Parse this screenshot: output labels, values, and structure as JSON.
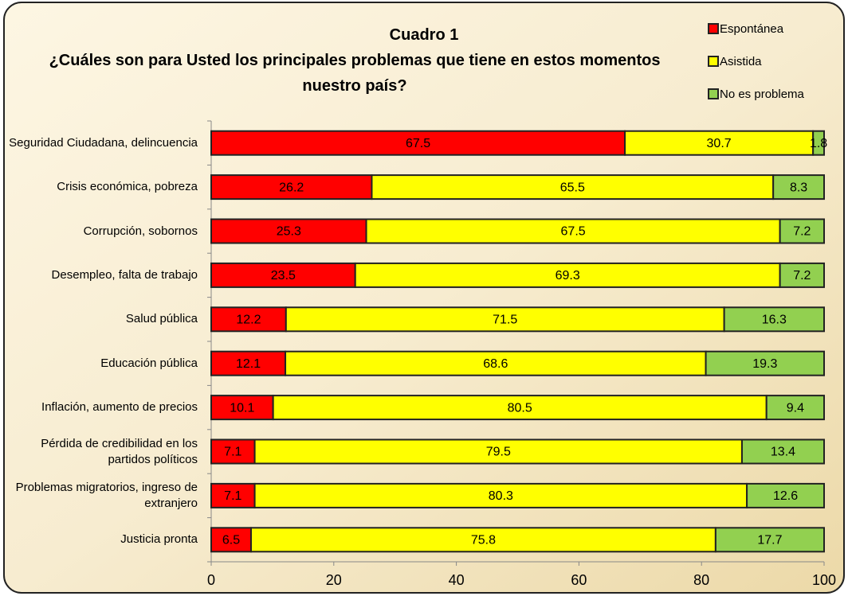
{
  "chart_data": {
    "type": "stacked_barh",
    "title": "Cuadro 1",
    "subtitle": "¿Cuáles son para Usted los principales problemas que tiene en estos momentos nuestro país?",
    "categories": [
      "Seguridad Ciudadana, delincuencia",
      "Crisis económica, pobreza",
      "Corrupción, sobornos",
      "Desempleo, falta de trabajo",
      "Salud pública",
      "Educación pública",
      "Inflación, aumento de precios",
      "Pérdida de credibilidad en los partidos políticos",
      "Problemas migratorios, ingreso de extranjero",
      "Justicia pronta"
    ],
    "series": [
      {
        "name": "Espontánea",
        "color": "#ff0000",
        "values": [
          67.5,
          26.2,
          25.3,
          23.5,
          12.2,
          12.1,
          10.1,
          7.1,
          7.1,
          6.5
        ]
      },
      {
        "name": "Asistida",
        "color": "#ffff00",
        "values": [
          30.7,
          65.5,
          67.5,
          69.3,
          71.5,
          68.6,
          80.5,
          79.5,
          80.3,
          75.8
        ]
      },
      {
        "name": "No es problema",
        "color": "#92d050",
        "values": [
          1.8,
          8.3,
          7.2,
          7.2,
          16.3,
          19.3,
          9.4,
          13.4,
          12.6,
          17.7
        ]
      }
    ],
    "xlim": [
      0,
      100
    ],
    "xticks": [
      0,
      20,
      40,
      60,
      80,
      100
    ],
    "grid": false,
    "legend": "top-right"
  }
}
